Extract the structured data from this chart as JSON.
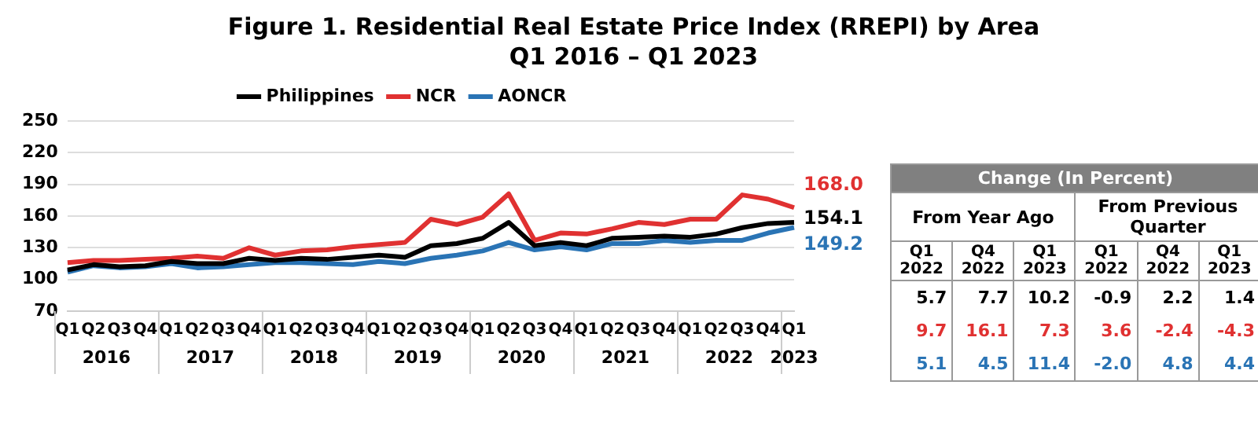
{
  "chart_data": [
    {
      "type": "line",
      "title": "Figure 1. Residential Real Estate Price Index (RREPI) by Area\nQ1 2016 – Q1 2023",
      "categories": [
        "Q1",
        "Q2",
        "Q3",
        "Q4",
        "Q1",
        "Q2",
        "Q3",
        "Q4",
        "Q1",
        "Q2",
        "Q3",
        "Q4",
        "Q1",
        "Q2",
        "Q3",
        "Q4",
        "Q1",
        "Q2",
        "Q3",
        "Q4",
        "Q1",
        "Q2",
        "Q3",
        "Q4",
        "Q1",
        "Q2",
        "Q3",
        "Q4",
        "Q1"
      ],
      "annotations": [
        "2016",
        "2017",
        "2018",
        "2019",
        "2020",
        "2021",
        "2022",
        "2023"
      ],
      "series": [
        {
          "name": "Philippines",
          "color": "#000000",
          "values": [
            109,
            114,
            112,
            113,
            117,
            115,
            115,
            120,
            118,
            120,
            119,
            121,
            123,
            121,
            132,
            134,
            139,
            154,
            132,
            135,
            132,
            139,
            140,
            141,
            140,
            143,
            149,
            153,
            154.1
          ],
          "value_labels": [
            null,
            null,
            null,
            null,
            null,
            null,
            null,
            null,
            null,
            null,
            null,
            null,
            null,
            null,
            null,
            null,
            null,
            null,
            null,
            null,
            null,
            null,
            null,
            null,
            null,
            null,
            null,
            null,
            "154.1"
          ]
        },
        {
          "name": "NCR",
          "color": "#e03131",
          "values": [
            116,
            118,
            118,
            119,
            120,
            122,
            120,
            130,
            123,
            127,
            128,
            131,
            133,
            135,
            157,
            152,
            159,
            181,
            137,
            144,
            143,
            148,
            154,
            152,
            157,
            157,
            180,
            176,
            168.0
          ],
          "value_labels": [
            null,
            null,
            null,
            null,
            null,
            null,
            null,
            null,
            null,
            null,
            null,
            null,
            null,
            null,
            null,
            null,
            null,
            null,
            null,
            null,
            null,
            null,
            null,
            null,
            null,
            null,
            null,
            null,
            "168.0"
          ]
        },
        {
          "name": "AONCR",
          "color": "#2a74b5",
          "values": [
            107,
            113,
            111,
            112,
            115,
            111,
            112,
            114,
            116,
            116,
            115,
            114,
            117,
            115,
            120,
            123,
            127,
            135,
            128,
            131,
            128,
            134,
            134,
            137,
            135,
            137,
            137,
            144,
            149.2
          ],
          "value_labels": [
            null,
            null,
            null,
            null,
            null,
            null,
            null,
            null,
            null,
            null,
            null,
            null,
            null,
            null,
            null,
            null,
            null,
            null,
            null,
            null,
            null,
            null,
            null,
            null,
            null,
            null,
            null,
            null,
            "149.2"
          ]
        }
      ],
      "ylim": [
        70,
        250
      ],
      "yticks": [
        70,
        100,
        130,
        160,
        190,
        220,
        250
      ],
      "grid": "y",
      "legend": "top",
      "marker": "none"
    },
    {
      "type": "other",
      "title": "Change (In Percent)",
      "annotations": [
        "From Year Ago",
        "From Previous Quarter"
      ],
      "categories": [
        "Q1 2022",
        "Q4 2022",
        "Q1 2023",
        "Q1 2022",
        "Q4 2022",
        "Q1 2023"
      ],
      "series": [
        {
          "color": "#000000",
          "values": [
            5.7,
            7.7,
            10.2,
            -0.9,
            2.2,
            1.4
          ],
          "value_labels": [
            "5.7",
            "7.7",
            "10.2",
            "-0.9",
            "2.2",
            "1.4"
          ]
        },
        {
          "color": "#e03131",
          "values": [
            9.7,
            16.1,
            7.3,
            3.6,
            -2.4,
            -4.3
          ],
          "value_labels": [
            "9.7",
            "16.1",
            "7.3",
            "3.6",
            "-2.4",
            "-4.3"
          ]
        },
        {
          "color": "#2a74b5",
          "values": [
            5.1,
            4.5,
            11.4,
            -2.0,
            4.8,
            4.4
          ],
          "value_labels": [
            "5.1",
            "4.5",
            "11.4",
            "-2.0",
            "4.8",
            "4.4"
          ]
        }
      ]
    }
  ]
}
